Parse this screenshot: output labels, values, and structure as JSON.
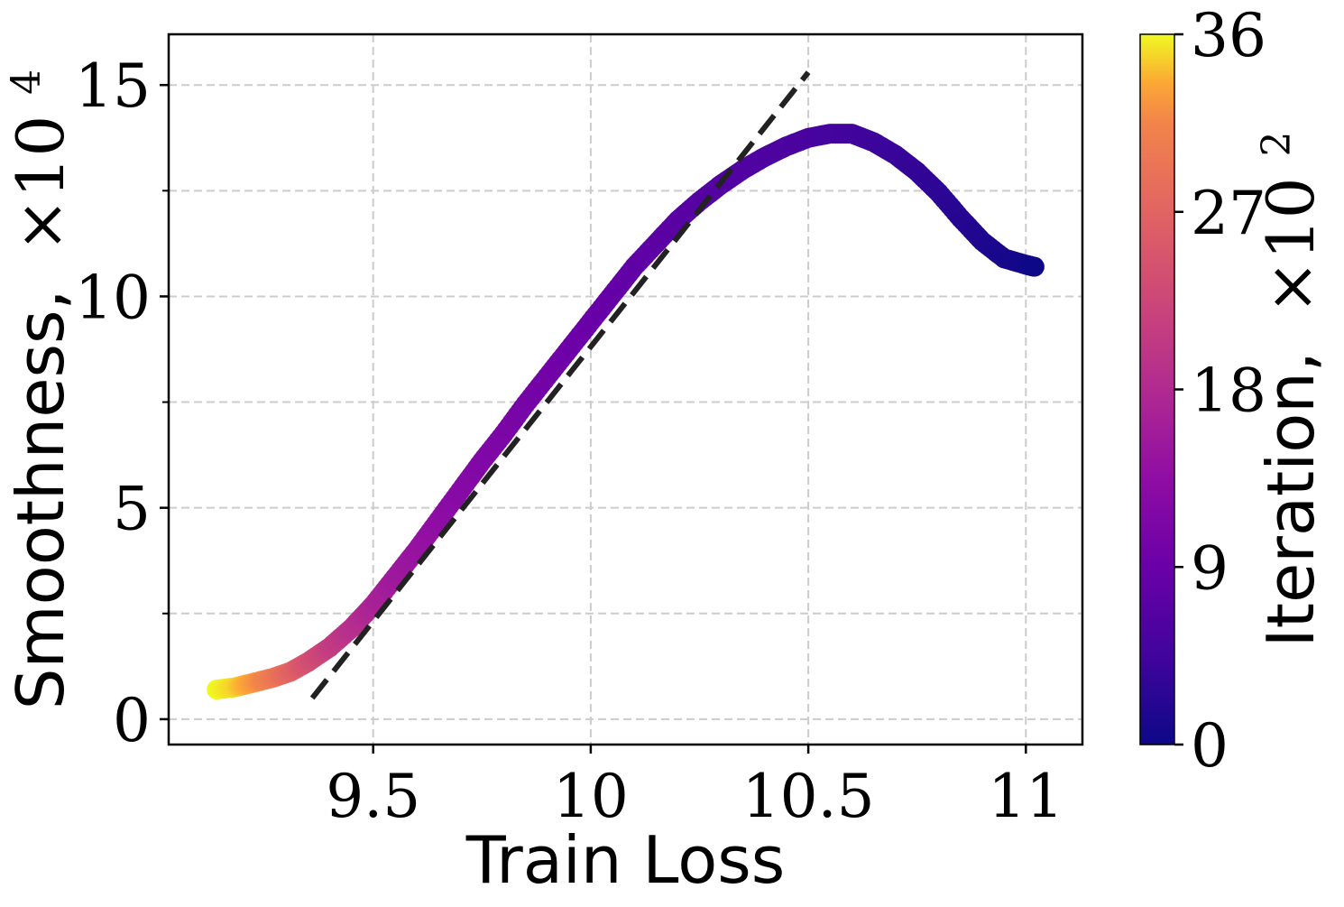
{
  "chart_data": {
    "type": "scatter",
    "xlabel": "Train Loss",
    "ylabel_text": "Smoothness,",
    "ylabel_multiplier": "×10",
    "ylabel_exponent": "4",
    "xlim": [
      9.03,
      11.13
    ],
    "ylim": [
      -0.6,
      16.2
    ],
    "xticks": [
      9.5,
      10,
      10.5,
      11
    ],
    "xtick_labels": [
      "9.5",
      "10",
      "10.5",
      "11"
    ],
    "xminor": [],
    "yticks": [
      0,
      5,
      10,
      15
    ],
    "ytick_labels": [
      "0",
      "5",
      "10",
      "15"
    ],
    "yminor": [
      2.5,
      7.5,
      12.5
    ],
    "grid": true,
    "colorbar": {
      "label_text": "Iteration,",
      "label_multiplier": "×10",
      "label_exponent": "2",
      "colormap": "plasma",
      "range": [
        0,
        36
      ],
      "ticks": [
        0,
        9,
        18,
        27,
        36
      ],
      "tick_labels": [
        "0",
        "9",
        "18",
        "27",
        "36"
      ]
    },
    "series": [
      {
        "color_by": "iteration",
        "points": [
          {
            "x": 9.14,
            "y": 0.7,
            "c": 36
          },
          {
            "x": 9.18,
            "y": 0.75,
            "c": 35
          },
          {
            "x": 9.22,
            "y": 0.85,
            "c": 33
          },
          {
            "x": 9.27,
            "y": 0.98,
            "c": 30
          },
          {
            "x": 9.31,
            "y": 1.12,
            "c": 27
          },
          {
            "x": 9.35,
            "y": 1.35,
            "c": 24
          },
          {
            "x": 9.4,
            "y": 1.7,
            "c": 21
          },
          {
            "x": 9.45,
            "y": 2.15,
            "c": 19
          },
          {
            "x": 9.5,
            "y": 2.7,
            "c": 17
          },
          {
            "x": 9.55,
            "y": 3.35,
            "c": 15.5
          },
          {
            "x": 9.6,
            "y": 4.0,
            "c": 14.5
          },
          {
            "x": 9.65,
            "y": 4.7,
            "c": 13.5
          },
          {
            "x": 9.7,
            "y": 5.4,
            "c": 12.5
          },
          {
            "x": 9.75,
            "y": 6.1,
            "c": 11.8
          },
          {
            "x": 9.8,
            "y": 6.75,
            "c": 11.2
          },
          {
            "x": 9.85,
            "y": 7.45,
            "c": 10.6
          },
          {
            "x": 9.9,
            "y": 8.1,
            "c": 10.0
          },
          {
            "x": 9.95,
            "y": 8.75,
            "c": 9.5
          },
          {
            "x": 10.0,
            "y": 9.4,
            "c": 9.0
          },
          {
            "x": 10.05,
            "y": 10.05,
            "c": 8.5
          },
          {
            "x": 10.1,
            "y": 10.7,
            "c": 8.0
          },
          {
            "x": 10.15,
            "y": 11.25,
            "c": 7.6
          },
          {
            "x": 10.2,
            "y": 11.8,
            "c": 7.2
          },
          {
            "x": 10.25,
            "y": 12.25,
            "c": 6.9
          },
          {
            "x": 10.3,
            "y": 12.65,
            "c": 6.6
          },
          {
            "x": 10.35,
            "y": 13.0,
            "c": 6.3
          },
          {
            "x": 10.4,
            "y": 13.3,
            "c": 6.0
          },
          {
            "x": 10.45,
            "y": 13.55,
            "c": 5.7
          },
          {
            "x": 10.5,
            "y": 13.75,
            "c": 5.4
          },
          {
            "x": 10.55,
            "y": 13.85,
            "c": 5.0
          },
          {
            "x": 10.6,
            "y": 13.85,
            "c": 4.6
          },
          {
            "x": 10.65,
            "y": 13.65,
            "c": 4.2
          },
          {
            "x": 10.7,
            "y": 13.35,
            "c": 3.8
          },
          {
            "x": 10.75,
            "y": 12.95,
            "c": 3.3
          },
          {
            "x": 10.8,
            "y": 12.45,
            "c": 2.8
          },
          {
            "x": 10.85,
            "y": 11.85,
            "c": 2.2
          },
          {
            "x": 10.9,
            "y": 11.3,
            "c": 1.6
          },
          {
            "x": 10.95,
            "y": 10.9,
            "c": 1.0
          },
          {
            "x": 11.0,
            "y": 10.75,
            "c": 0.5
          },
          {
            "x": 11.02,
            "y": 10.7,
            "c": 0
          }
        ]
      }
    ],
    "fit_line": {
      "style": "dashed",
      "color": "#222222",
      "x": [
        9.36,
        10.5
      ],
      "y": [
        0.5,
        15.3
      ]
    }
  }
}
